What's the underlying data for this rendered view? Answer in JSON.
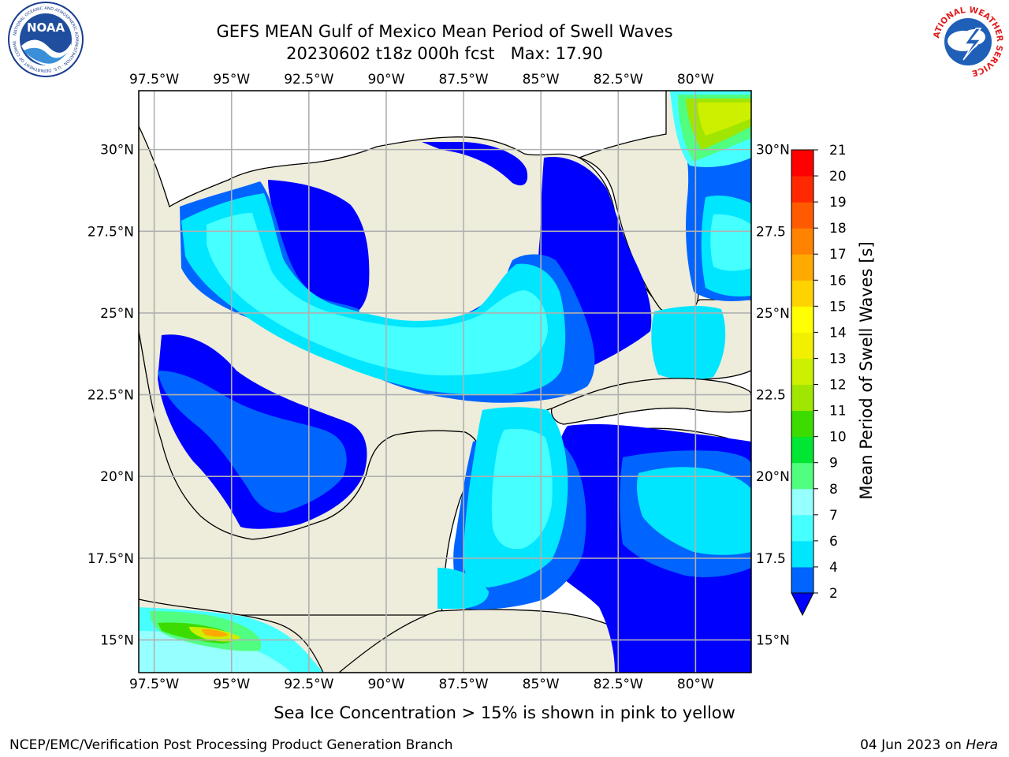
{
  "title": {
    "line1": "GEFS MEAN Gulf of Mexico Mean Period of Swell Waves",
    "line2": "20230602 t18z 000h fcst   Max: 17.90"
  },
  "logos": {
    "left": {
      "name": "NOAA",
      "ring_text": "NATIONAL OCEANIC AND ATMOSPHERIC ADMINISTRATION · U.S. DEPARTMENT OF COMMERCE"
    },
    "right": {
      "name": "NATIONAL WEATHER SERVICE"
    }
  },
  "map": {
    "lon_labels": [
      "97.5°W",
      "95°W",
      "92.5°W",
      "90°W",
      "87.5°W",
      "85°W",
      "82.5°W",
      "80°W"
    ],
    "lon_values": [
      -97.5,
      -95,
      -92.5,
      -90,
      -87.5,
      -85,
      -82.5,
      -80
    ],
    "lat_labels_left": [
      "30°N",
      "27.5°N",
      "25°N",
      "22.5°N",
      "20°N",
      "17.5°N",
      "15°N"
    ],
    "lat_labels_right": [
      "30°N",
      "27.5",
      "25°N",
      "22.5",
      "20°N",
      "17.5",
      "15°N"
    ],
    "lat_values": [
      30,
      27.5,
      25,
      22.5,
      20,
      17.5,
      15
    ],
    "extent": {
      "lon_min": -98,
      "lon_max": -78.2,
      "lat_min": 14.0,
      "lat_max": 31.8
    },
    "colors": {
      "land": "#eeecdb",
      "gridline": "#b0b0b0",
      "coastline": "#000000"
    }
  },
  "colorbar": {
    "label": "Mean Period of Swell Waves [s]",
    "ticks": [
      "2",
      "4",
      "6",
      "7",
      "8",
      "9",
      "10",
      "11",
      "12",
      "13",
      "14",
      "15",
      "16",
      "17",
      "18",
      "19",
      "20",
      "21"
    ],
    "colors": [
      "#0064ff",
      "#00e6ff",
      "#46ffff",
      "#96ffff",
      "#50ff80",
      "#00e632",
      "#3cdc00",
      "#a0e600",
      "#cdf000",
      "#f0f000",
      "#ffff00",
      "#ffd200",
      "#ffaa00",
      "#ff8200",
      "#ff5a00",
      "#ff2800",
      "#ff0000"
    ],
    "extend_color": "#0000ff"
  },
  "notes": {
    "ice": "Sea Ice Concentration > 15% is shown in pink to yellow",
    "branch": "NCEP/EMC/Verification Post Processing Product Generation Branch",
    "date_prefix": "04 Jun 2023 on ",
    "date_host": "Hera"
  }
}
